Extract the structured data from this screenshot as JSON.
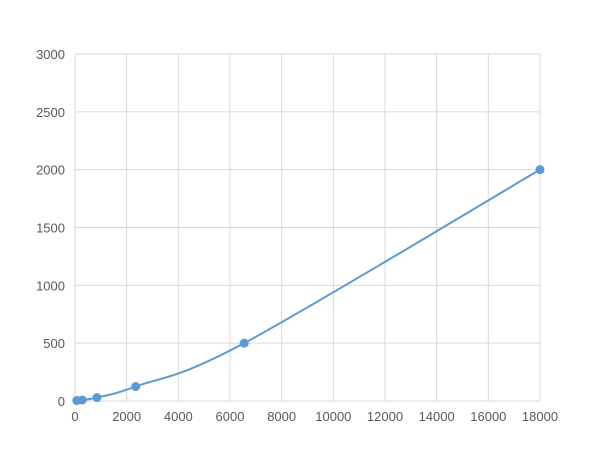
{
  "chart_data": {
    "type": "scatter",
    "title": "",
    "xlabel": "",
    "ylabel": "",
    "xlim": [
      0,
      18000
    ],
    "ylim": [
      0,
      3000
    ],
    "xticks": [
      "0",
      "2000",
      "4000",
      "6000",
      "8000",
      "10000",
      "12000",
      "14000",
      "16000",
      "18000"
    ],
    "yticks": [
      "0",
      "500",
      "1000",
      "1500",
      "2000",
      "2500",
      "3000"
    ],
    "grid": true,
    "legend": "none",
    "color": "#5b9bd5",
    "series": [
      {
        "x": [
          70,
          280,
          850,
          2350,
          6550,
          18000
        ],
        "y": [
          4,
          9,
          30,
          125,
          500,
          2000
        ]
      }
    ]
  }
}
